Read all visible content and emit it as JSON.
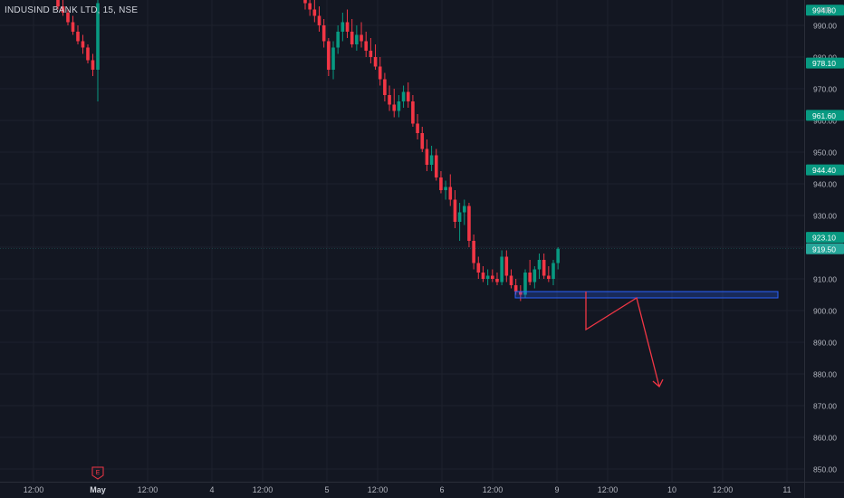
{
  "header": {
    "symbol": "INDUSIND BANK LTD, 15, NSE",
    "currency": "INR"
  },
  "chart_data": {
    "type": "candlestick",
    "ylim": [
      846,
      998
    ],
    "y_ticks": [
      850,
      860,
      870,
      880,
      890,
      900,
      910,
      920,
      930,
      940,
      950,
      960,
      970,
      980,
      990
    ],
    "y_tick_labels": [
      "850.00",
      "860.00",
      "870.00",
      "880.00",
      "890.00",
      "900.00",
      "910.00",
      "920.00",
      "930.00",
      "940.00",
      "950.00",
      "960.00",
      "970.00",
      "980.00",
      "990.00"
    ],
    "x_ticks": [
      "12:00",
      "May",
      "12:00",
      "4",
      "12:00",
      "5",
      "12:00",
      "6",
      "12:00",
      "9",
      "12:00",
      "10",
      "12:00",
      "11"
    ],
    "price_labels": [
      {
        "value": 994.8,
        "text": "994.80",
        "color": "#089981"
      },
      {
        "value": 978.1,
        "text": "978.10",
        "color": "#089981"
      },
      {
        "value": 961.6,
        "text": "961.60",
        "color": "#089981"
      },
      {
        "value": 944.4,
        "text": "944.40",
        "color": "#089981"
      },
      {
        "value": 923.1,
        "text": "923.10",
        "color": "#089981"
      },
      {
        "value": 919.5,
        "text": "919.50",
        "color": "#26a69a"
      }
    ],
    "earnings_marker": "E",
    "zone": {
      "top": 906,
      "bottom": 904,
      "color": "#2962ff"
    },
    "projection_path": [
      [
        900,
        906
      ],
      [
        900,
        894
      ],
      [
        909,
        904
      ],
      [
        918,
        876
      ]
    ],
    "candles": [
      {
        "o": 998,
        "h": 999,
        "l": 995,
        "c": 996
      },
      {
        "o": 996,
        "h": 998,
        "l": 993,
        "c": 994
      },
      {
        "o": 994,
        "h": 995,
        "l": 990,
        "c": 991
      },
      {
        "o": 991,
        "h": 993,
        "l": 987,
        "c": 988
      },
      {
        "o": 988,
        "h": 990,
        "l": 984,
        "c": 985
      },
      {
        "o": 985,
        "h": 987,
        "l": 981,
        "c": 983
      },
      {
        "o": 983,
        "h": 984,
        "l": 978,
        "c": 979
      },
      {
        "o": 979,
        "h": 981,
        "l": 974,
        "c": 976
      },
      {
        "o": 976,
        "h": 998,
        "l": 966,
        "c": 997
      },
      {
        "o": 998,
        "h": 999,
        "l": 995,
        "c": 997
      },
      {
        "o": 997,
        "h": 999,
        "l": 993,
        "c": 995
      },
      {
        "o": 995,
        "h": 998,
        "l": 991,
        "c": 993
      },
      {
        "o": 993,
        "h": 996,
        "l": 988,
        "c": 990
      },
      {
        "o": 990,
        "h": 992,
        "l": 983,
        "c": 985
      },
      {
        "o": 985,
        "h": 986,
        "l": 974,
        "c": 976
      },
      {
        "o": 976,
        "h": 985,
        "l": 973,
        "c": 983
      },
      {
        "o": 983,
        "h": 990,
        "l": 981,
        "c": 988
      },
      {
        "o": 988,
        "h": 994,
        "l": 985,
        "c": 991
      },
      {
        "o": 991,
        "h": 995,
        "l": 986,
        "c": 988
      },
      {
        "o": 988,
        "h": 992,
        "l": 983,
        "c": 984
      },
      {
        "o": 984,
        "h": 990,
        "l": 982,
        "c": 987
      },
      {
        "o": 987,
        "h": 991,
        "l": 983,
        "c": 985
      },
      {
        "o": 985,
        "h": 988,
        "l": 980,
        "c": 982
      },
      {
        "o": 982,
        "h": 986,
        "l": 978,
        "c": 980
      },
      {
        "o": 980,
        "h": 984,
        "l": 976,
        "c": 977
      },
      {
        "o": 977,
        "h": 980,
        "l": 971,
        "c": 973
      },
      {
        "o": 973,
        "h": 975,
        "l": 966,
        "c": 968
      },
      {
        "o": 968,
        "h": 971,
        "l": 963,
        "c": 965
      },
      {
        "o": 965,
        "h": 970,
        "l": 961,
        "c": 963
      },
      {
        "o": 963,
        "h": 968,
        "l": 961,
        "c": 966
      },
      {
        "o": 966,
        "h": 971,
        "l": 964,
        "c": 969
      },
      {
        "o": 969,
        "h": 972,
        "l": 964,
        "c": 966
      },
      {
        "o": 966,
        "h": 968,
        "l": 958,
        "c": 959
      },
      {
        "o": 959,
        "h": 962,
        "l": 954,
        "c": 956
      },
      {
        "o": 956,
        "h": 958,
        "l": 950,
        "c": 951
      },
      {
        "o": 951,
        "h": 954,
        "l": 944,
        "c": 946
      },
      {
        "o": 946,
        "h": 952,
        "l": 944,
        "c": 949
      },
      {
        "o": 949,
        "h": 951,
        "l": 941,
        "c": 942
      },
      {
        "o": 942,
        "h": 944,
        "l": 937,
        "c": 938
      },
      {
        "o": 938,
        "h": 941,
        "l": 935,
        "c": 939
      },
      {
        "o": 939,
        "h": 943,
        "l": 933,
        "c": 935
      },
      {
        "o": 935,
        "h": 938,
        "l": 926,
        "c": 928
      },
      {
        "o": 928,
        "h": 934,
        "l": 922,
        "c": 931
      },
      {
        "o": 931,
        "h": 935,
        "l": 927,
        "c": 933
      },
      {
        "o": 933,
        "h": 934,
        "l": 920,
        "c": 922
      },
      {
        "o": 922,
        "h": 924,
        "l": 913,
        "c": 915
      },
      {
        "o": 915,
        "h": 917,
        "l": 910,
        "c": 912
      },
      {
        "o": 912,
        "h": 914,
        "l": 909,
        "c": 910
      },
      {
        "o": 910,
        "h": 913,
        "l": 908,
        "c": 911
      },
      {
        "o": 911,
        "h": 913,
        "l": 909,
        "c": 910
      },
      {
        "o": 910,
        "h": 912,
        "l": 908,
        "c": 909
      },
      {
        "o": 909,
        "h": 919,
        "l": 908,
        "c": 917
      },
      {
        "o": 917,
        "h": 919,
        "l": 909,
        "c": 911
      },
      {
        "o": 911,
        "h": 913,
        "l": 907,
        "c": 908
      },
      {
        "o": 908,
        "h": 910,
        "l": 905,
        "c": 906
      },
      {
        "o": 906,
        "h": 908,
        "l": 903,
        "c": 905
      },
      {
        "o": 905,
        "h": 913,
        "l": 904,
        "c": 912
      },
      {
        "o": 912,
        "h": 916,
        "l": 908,
        "c": 909
      },
      {
        "o": 909,
        "h": 914,
        "l": 907,
        "c": 913
      },
      {
        "o": 913,
        "h": 918,
        "l": 910,
        "c": 916
      },
      {
        "o": 916,
        "h": 918,
        "l": 910,
        "c": 911
      },
      {
        "o": 911,
        "h": 914,
        "l": 909,
        "c": 910
      },
      {
        "o": 910,
        "h": 916,
        "l": 908,
        "c": 915
      },
      {
        "o": 915,
        "h": 920,
        "l": 913,
        "c": 919.5
      }
    ]
  }
}
